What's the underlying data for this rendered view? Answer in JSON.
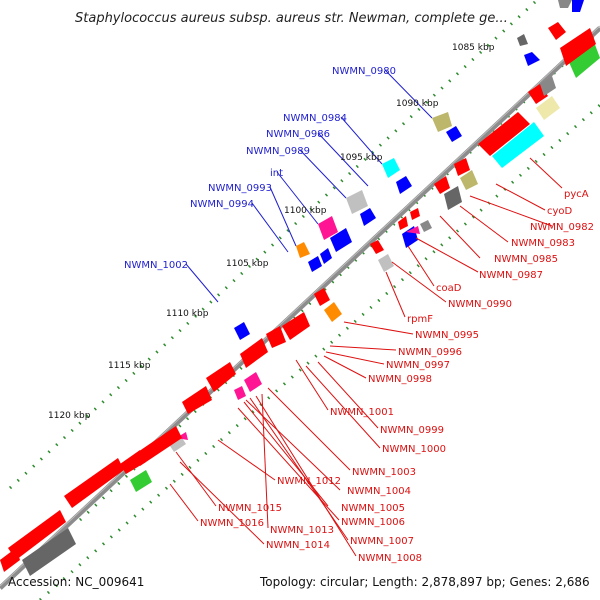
{
  "title": "Staphylococcus aureus subsp. aureus str. Newman, complete ge...",
  "footer": {
    "accession": "Accession: NC_009641",
    "summary": "Topology: circular; Length: 2,878,897 bp; Genes: 2,686"
  },
  "scale_labels": [
    "1085 kbp",
    "1090 kbp",
    "1095 kbp",
    "1100 kbp",
    "1105 kbp",
    "1110 kbp",
    "1115 kbp",
    "1120 kbp"
  ],
  "colors": {
    "backbone": "#808080",
    "forward_labels": "#1f1fd0",
    "reverse_labels": "#dd1111",
    "gene_red": "#ff0000",
    "gene_blue": "#0000ff",
    "gene_cyan": "#00ffff",
    "gene_khaki": "#bdb76b",
    "gene_orange": "#ff8c00",
    "gene_magenta": "#ff1493",
    "gene_green": "#33cc33",
    "gene_gray": "#c0c0c0",
    "gene_darkgray": "#666666",
    "gene_lightyellow": "#eee8aa",
    "tick_green": "#2e8b2e"
  },
  "forward_genes": [
    "NWMN_0980",
    "NWMN_0984",
    "NWMN_0986",
    "NWMN_0989",
    "int",
    "NWMN_0993",
    "NWMN_0994",
    "NWMN_1002"
  ],
  "reverse_genes": [
    "pycA",
    "cyoD",
    "NWMN_0982",
    "NWMN_0983",
    "NWMN_0985",
    "NWMN_0987",
    "coaD",
    "NWMN_0990",
    "rpmF",
    "NWMN_0995",
    "NWMN_0996",
    "NWMN_0997",
    "NWMN_0998",
    "NWMN_1001",
    "NWMN_0999",
    "NWMN_1000",
    "NWMN_1003",
    "NWMN_1004",
    "NWMN_1012",
    "NWMN_1005",
    "NWMN_1015",
    "NWMN_1006",
    "NWMN_1016",
    "NWMN_1013",
    "NWMN_1007",
    "NWMN_1014",
    "NWMN_1008"
  ]
}
